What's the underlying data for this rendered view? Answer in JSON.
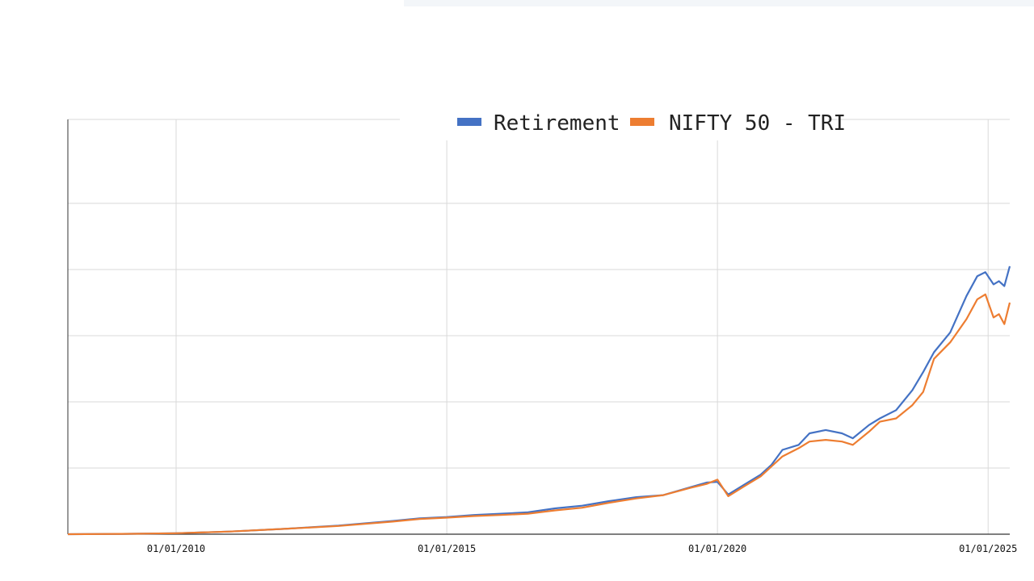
{
  "chart_data": {
    "type": "line",
    "title": "",
    "xlabel": "",
    "ylabel": "",
    "x_range": [
      2008.0,
      2025.4
    ],
    "y_range": [
      0,
      100
    ],
    "x_ticks": [
      {
        "year": 2010,
        "label": "01/01/2010"
      },
      {
        "year": 2015,
        "label": "01/01/2015"
      },
      {
        "year": 2020,
        "label": "01/01/2020"
      },
      {
        "year": 2025,
        "label": "01/01/2025"
      }
    ],
    "y_gridlines": [
      20,
      40,
      60,
      80,
      100
    ],
    "grid": true,
    "legend": {
      "position": "top-center",
      "entries": [
        "Retirement",
        "NIFTY 50 - TRI"
      ]
    },
    "series": [
      {
        "name": "Retirement",
        "color": "#4472c4",
        "points": [
          [
            2008.0,
            0.0
          ],
          [
            2009.0,
            0.1
          ],
          [
            2010.0,
            0.3
          ],
          [
            2011.0,
            0.8
          ],
          [
            2012.0,
            1.6
          ],
          [
            2013.0,
            2.6
          ],
          [
            2014.0,
            4.0
          ],
          [
            2014.5,
            4.8
          ],
          [
            2015.0,
            5.2
          ],
          [
            2015.5,
            5.8
          ],
          [
            2016.0,
            6.2
          ],
          [
            2016.5,
            6.6
          ],
          [
            2017.0,
            7.8
          ],
          [
            2017.5,
            8.6
          ],
          [
            2018.0,
            10.0
          ],
          [
            2018.5,
            11.2
          ],
          [
            2019.0,
            11.8
          ],
          [
            2019.5,
            14.2
          ],
          [
            2019.8,
            15.6
          ],
          [
            2020.0,
            15.8
          ],
          [
            2020.2,
            12.0
          ],
          [
            2020.5,
            15.0
          ],
          [
            2020.8,
            18.0
          ],
          [
            2021.0,
            21.0
          ],
          [
            2021.2,
            25.5
          ],
          [
            2021.5,
            27.0
          ],
          [
            2021.7,
            30.5
          ],
          [
            2022.0,
            31.5
          ],
          [
            2022.3,
            30.5
          ],
          [
            2022.5,
            29.0
          ],
          [
            2022.8,
            33.0
          ],
          [
            2023.0,
            35.0
          ],
          [
            2023.3,
            37.5
          ],
          [
            2023.6,
            43.5
          ],
          [
            2023.8,
            49.0
          ],
          [
            2024.0,
            55.0
          ],
          [
            2024.3,
            61.0
          ],
          [
            2024.6,
            72.0
          ],
          [
            2024.8,
            78.0
          ],
          [
            2024.95,
            79.2
          ],
          [
            2025.1,
            75.5
          ],
          [
            2025.2,
            76.5
          ],
          [
            2025.3,
            75.0
          ],
          [
            2025.4,
            81.0
          ]
        ]
      },
      {
        "name": "NIFTY 50 - TRI",
        "color": "#ed7d31",
        "points": [
          [
            2008.0,
            0.0
          ],
          [
            2009.0,
            0.1
          ],
          [
            2010.0,
            0.3
          ],
          [
            2011.0,
            0.8
          ],
          [
            2012.0,
            1.6
          ],
          [
            2013.0,
            2.5
          ],
          [
            2014.0,
            3.8
          ],
          [
            2014.5,
            4.6
          ],
          [
            2015.0,
            5.0
          ],
          [
            2015.5,
            5.5
          ],
          [
            2016.0,
            5.8
          ],
          [
            2016.5,
            6.2
          ],
          [
            2017.0,
            7.2
          ],
          [
            2017.5,
            8.0
          ],
          [
            2018.0,
            9.5
          ],
          [
            2018.5,
            10.8
          ],
          [
            2019.0,
            11.8
          ],
          [
            2019.5,
            14.0
          ],
          [
            2019.8,
            15.2
          ],
          [
            2020.0,
            16.5
          ],
          [
            2020.2,
            11.5
          ],
          [
            2020.5,
            14.5
          ],
          [
            2020.8,
            17.5
          ],
          [
            2021.0,
            20.5
          ],
          [
            2021.2,
            23.5
          ],
          [
            2021.5,
            26.0
          ],
          [
            2021.7,
            28.0
          ],
          [
            2022.0,
            28.5
          ],
          [
            2022.3,
            28.0
          ],
          [
            2022.5,
            27.0
          ],
          [
            2022.8,
            31.0
          ],
          [
            2023.0,
            34.0
          ],
          [
            2023.3,
            35.0
          ],
          [
            2023.6,
            39.0
          ],
          [
            2023.8,
            43.0
          ],
          [
            2024.0,
            53.0
          ],
          [
            2024.3,
            58.0
          ],
          [
            2024.6,
            65.0
          ],
          [
            2024.8,
            71.0
          ],
          [
            2024.95,
            72.5
          ],
          [
            2025.1,
            65.5
          ],
          [
            2025.2,
            66.5
          ],
          [
            2025.3,
            63.5
          ],
          [
            2025.4,
            70.0
          ]
        ]
      }
    ]
  }
}
